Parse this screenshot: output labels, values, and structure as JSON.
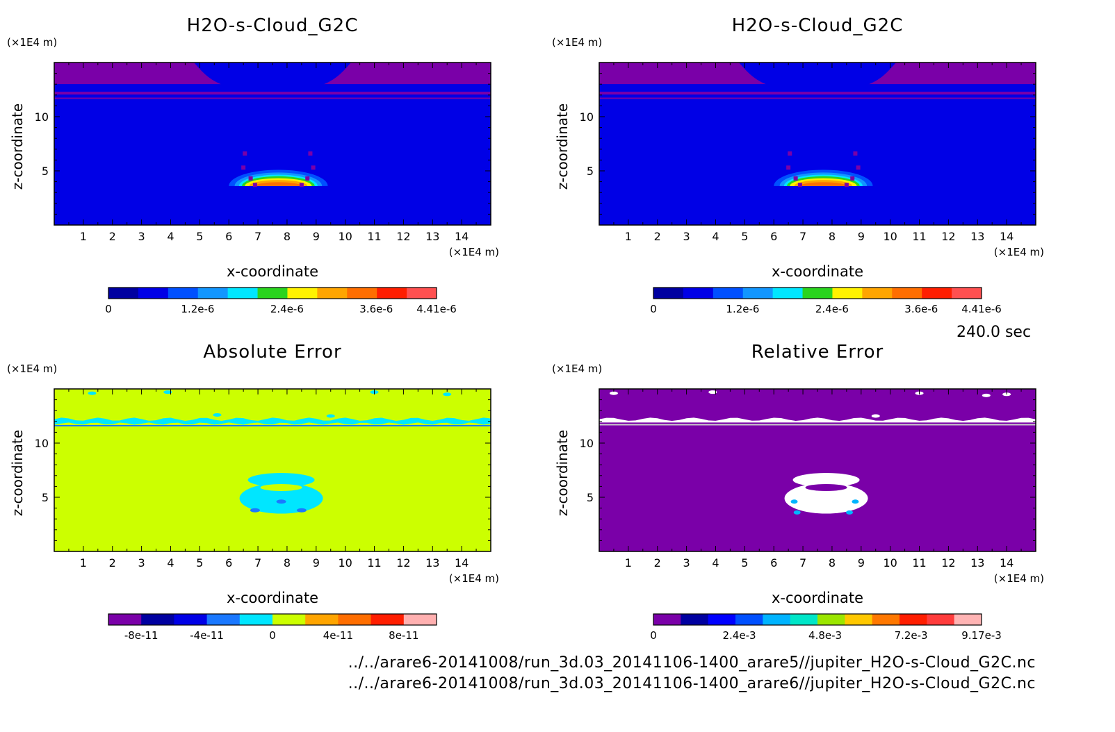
{
  "chart_data": [
    {
      "type": "heatmap",
      "title": "H2O-s-Cloud_G2C",
      "xlabel": "x-coordinate",
      "ylabel": "z-coordinate",
      "x_unit": "(×1E4 m)",
      "z_unit": "(×1E4 m)",
      "xlim": [
        0,
        15
      ],
      "zlim": [
        0,
        15
      ],
      "x_ticks": [
        "1",
        "2",
        "3",
        "4",
        "5",
        "6",
        "7",
        "8",
        "9",
        "10",
        "11",
        "12",
        "13",
        "14"
      ],
      "z_ticks": [
        "5",
        "10"
      ],
      "field": "cloud",
      "colorbar": {
        "colors": [
          "#0000a0",
          "#0000e6",
          "#0050ff",
          "#1296ff",
          "#00e6ff",
          "#2ad41e",
          "#fff200",
          "#ffa500",
          "#ff6e00",
          "#ff1e00",
          "#ff5050"
        ],
        "labels": [
          "0",
          "1.2e-6",
          "2.4e-6",
          "3.6e-6",
          "4.41e-6"
        ],
        "range": [
          0,
          4.41e-06
        ]
      }
    },
    {
      "type": "heatmap",
      "title": "H2O-s-Cloud_G2C",
      "xlabel": "x-coordinate",
      "ylabel": "z-coordinate",
      "x_unit": "(×1E4 m)",
      "z_unit": "(×1E4 m)",
      "xlim": [
        0,
        15
      ],
      "zlim": [
        0,
        15
      ],
      "x_ticks": [
        "1",
        "2",
        "3",
        "4",
        "5",
        "6",
        "7",
        "8",
        "9",
        "10",
        "11",
        "12",
        "13",
        "14"
      ],
      "z_ticks": [
        "5",
        "10"
      ],
      "field": "cloud",
      "colorbar": {
        "colors": [
          "#0000a0",
          "#0000e6",
          "#0050ff",
          "#1296ff",
          "#00e6ff",
          "#2ad41e",
          "#fff200",
          "#ffa500",
          "#ff6e00",
          "#ff1e00",
          "#ff5050"
        ],
        "labels": [
          "0",
          "1.2e-6",
          "2.4e-6",
          "3.6e-6",
          "4.41e-6"
        ],
        "range": [
          0,
          4.41e-06
        ]
      }
    },
    {
      "type": "heatmap",
      "title": "Absolute Error",
      "xlabel": "x-coordinate",
      "ylabel": "z-coordinate",
      "x_unit": "(×1E4 m)",
      "z_unit": "(×1E4 m)",
      "xlim": [
        0,
        15
      ],
      "zlim": [
        0,
        15
      ],
      "x_ticks": [
        "1",
        "2",
        "3",
        "4",
        "5",
        "6",
        "7",
        "8",
        "9",
        "10",
        "11",
        "12",
        "13",
        "14"
      ],
      "z_ticks": [
        "5",
        "10"
      ],
      "field": "abs",
      "colorbar": {
        "colors": [
          "#7a00a8",
          "#0000a0",
          "#0000e6",
          "#1a78ff",
          "#00e6ff",
          "#ccff00",
          "#ffa500",
          "#ff6e00",
          "#ff1e00",
          "#ffb0b0"
        ],
        "labels": [
          "-8e-11",
          "-4e-11",
          "0",
          "4e-11",
          "8e-11"
        ],
        "range": [
          -1e-10,
          1e-10
        ]
      }
    },
    {
      "type": "heatmap",
      "title": "Relative Error",
      "xlabel": "x-coordinate",
      "ylabel": "z-coordinate",
      "x_unit": "(×1E4 m)",
      "z_unit": "(×1E4 m)",
      "xlim": [
        0,
        15
      ],
      "zlim": [
        0,
        15
      ],
      "x_ticks": [
        "1",
        "2",
        "3",
        "4",
        "5",
        "6",
        "7",
        "8",
        "9",
        "10",
        "11",
        "12",
        "13",
        "14"
      ],
      "z_ticks": [
        "5",
        "10"
      ],
      "field": "rel",
      "colorbar": {
        "colors": [
          "#7a00a8",
          "#0000a0",
          "#0000ff",
          "#0050ff",
          "#00b4ff",
          "#00e6c8",
          "#9be600",
          "#ffc800",
          "#ff7800",
          "#ff1e00",
          "#ff3c3c",
          "#ffb4b4"
        ],
        "labels": [
          "0",
          "2.4e-3",
          "4.8e-3",
          "7.2e-3",
          "9.17e-3"
        ],
        "range": [
          0,
          0.00917
        ]
      }
    }
  ],
  "time_label": "240.0 sec",
  "captions": [
    "../../arare6-20141008/run_3d.03_20141106-1400_arare5//jupiter_H2O-s-Cloud_G2C.nc",
    "../../arare6-20141008/run_3d.03_20141106-1400_arare6//jupiter_H2O-s-Cloud_G2C.nc"
  ]
}
